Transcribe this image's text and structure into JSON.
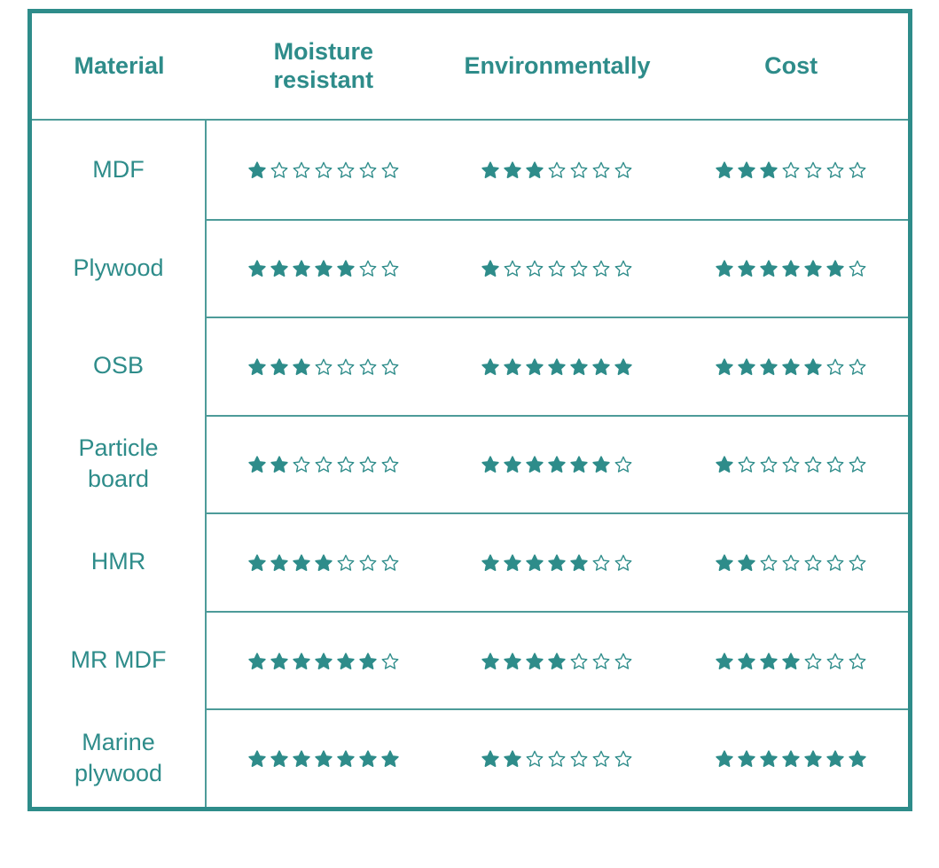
{
  "colors": {
    "accent": "#2E8C8A",
    "grid_line": "#4D9B99",
    "background": "#FFFFFF"
  },
  "table": {
    "headers": [
      "Material",
      "Moisture resistant",
      "Environmentally",
      "Cost"
    ],
    "max_rating": 7,
    "rows": [
      {
        "material": "MDF",
        "ratings": [
          1,
          3,
          3
        ]
      },
      {
        "material": "Plywood",
        "ratings": [
          5,
          1,
          6
        ]
      },
      {
        "material": "OSB",
        "ratings": [
          3,
          7,
          5
        ]
      },
      {
        "material": "Particle board",
        "ratings": [
          2,
          6,
          1
        ]
      },
      {
        "material": "HMR",
        "ratings": [
          4,
          5,
          2
        ]
      },
      {
        "material": "MR MDF",
        "ratings": [
          6,
          4,
          4
        ]
      },
      {
        "material": "Marine plywood",
        "ratings": [
          7,
          2,
          7
        ]
      }
    ]
  },
  "chart_data": {
    "type": "table",
    "categories": [
      "MDF",
      "Plywood",
      "OSB",
      "Particle board",
      "HMR",
      "MR MDF",
      "Marine plywood"
    ],
    "series": [
      {
        "name": "Moisture resistant",
        "values": [
          1,
          5,
          3,
          2,
          4,
          6,
          7
        ]
      },
      {
        "name": "Environmentally",
        "values": [
          3,
          1,
          7,
          6,
          5,
          4,
          2
        ]
      },
      {
        "name": "Cost",
        "values": [
          3,
          6,
          5,
          1,
          2,
          4,
          7
        ]
      }
    ],
    "rating_scale": [
      0,
      7
    ],
    "legend_position": "none",
    "notes": "Star ratings out of 7; filled stars = rating value, outlined stars = remainder"
  }
}
